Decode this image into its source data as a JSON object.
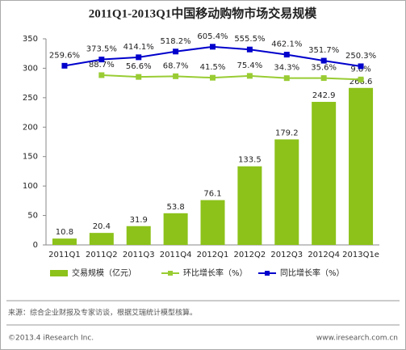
{
  "chart_data": {
    "type": "bar",
    "title": "2011Q1-2013Q1中国移动购物市场交易规模",
    "categories": [
      "2011Q1",
      "2011Q2",
      "2011Q3",
      "2011Q4",
      "2012Q1",
      "2012Q2",
      "2012Q3",
      "2012Q4",
      "2013Q1e"
    ],
    "ylim": [
      0,
      350
    ],
    "yticks": [
      0,
      50,
      100,
      150,
      200,
      250,
      300,
      350
    ],
    "y2lim": [
      -3000,
      750
    ],
    "series": [
      {
        "name": "交易规模（亿元）",
        "type": "bar",
        "color": "#8cc21a",
        "values": [
          10.8,
          20.4,
          31.9,
          53.8,
          76.1,
          133.5,
          179.2,
          242.9,
          266.6
        ]
      },
      {
        "name": "环比增长率（%）",
        "type": "line",
        "axis": "y2",
        "color": "#99cc33",
        "values": [
          null,
          88.7,
          56.6,
          68.7,
          41.5,
          75.4,
          34.3,
          35.6,
          9.8
        ],
        "value_labels": [
          null,
          "88.7%",
          "56.6%",
          "68.7%",
          "41.5%",
          "75.4%",
          "34.3%",
          "35.6%",
          "9.8%"
        ]
      },
      {
        "name": "同比增长率（%）",
        "type": "line",
        "axis": "y2",
        "color": "#0000cc",
        "values": [
          259.6,
          373.5,
          414.1,
          518.2,
          605.4,
          555.5,
          462.1,
          351.7,
          250.3
        ],
        "value_labels": [
          "259.6%",
          "373.5%",
          "414.1%",
          "518.2%",
          "605.4%",
          "555.5%",
          "462.1%",
          "351.7%",
          "250.3%"
        ]
      }
    ]
  },
  "source": "来源：综合企业财报及专家访谈，根据艾瑞统计模型核算。",
  "footer": {
    "left": "©2013.4 iResearch Inc.",
    "right": "www.iresearch.com.cn"
  }
}
